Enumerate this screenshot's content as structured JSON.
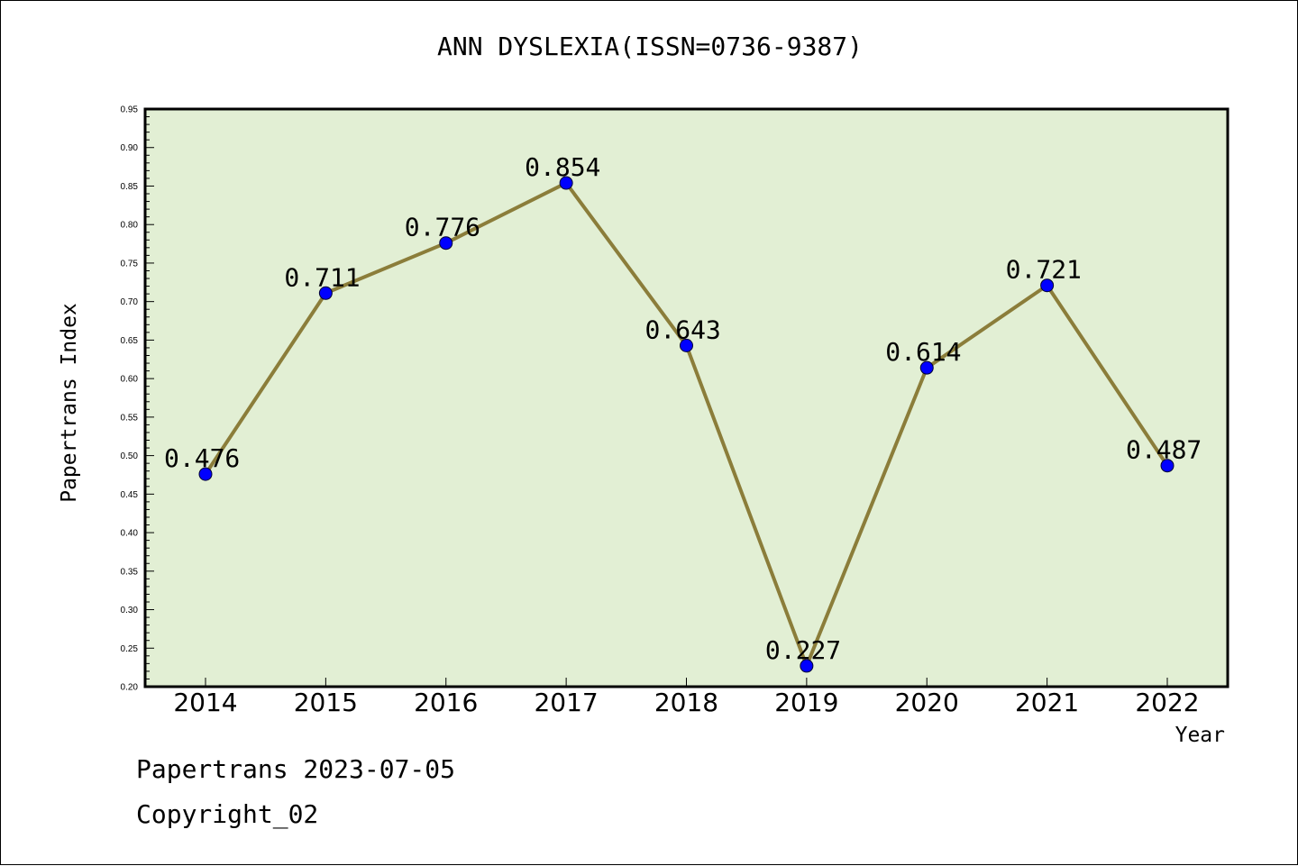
{
  "title": "ANN DYSLEXIA(ISSN=0736-9387)",
  "footer": {
    "date_line": "Papertrans 2023-07-05",
    "copyright_line": "Copyright_02"
  },
  "colors": {
    "plot_background": "#e2efd4",
    "line": "#8b7d3a",
    "marker": "#0000ff"
  },
  "chart_data": {
    "type": "line",
    "title": "ANN DYSLEXIA(ISSN=0736-9387)",
    "xlabel": "Year",
    "ylabel": "Papertrans Index",
    "categories": [
      "2014",
      "2015",
      "2016",
      "2017",
      "2018",
      "2019",
      "2020",
      "2021",
      "2022"
    ],
    "series": [
      {
        "values": [
          0.476,
          0.711,
          0.776,
          0.854,
          0.643,
          0.227,
          0.614,
          0.721,
          0.487
        ],
        "labels": [
          "0.476",
          "0.711",
          "0.776",
          "0.854",
          "0.643",
          "0.227",
          "0.614",
          "0.721",
          "0.487"
        ]
      }
    ],
    "ylim": [
      0.2,
      0.95
    ],
    "y_ticks": [
      "0.20",
      "0.25",
      "0.30",
      "0.35",
      "0.40",
      "0.45",
      "0.50",
      "0.55",
      "0.60",
      "0.65",
      "0.70",
      "0.75",
      "0.80",
      "0.85",
      "0.90",
      "0.95"
    ],
    "grid": false,
    "legend": "none"
  }
}
